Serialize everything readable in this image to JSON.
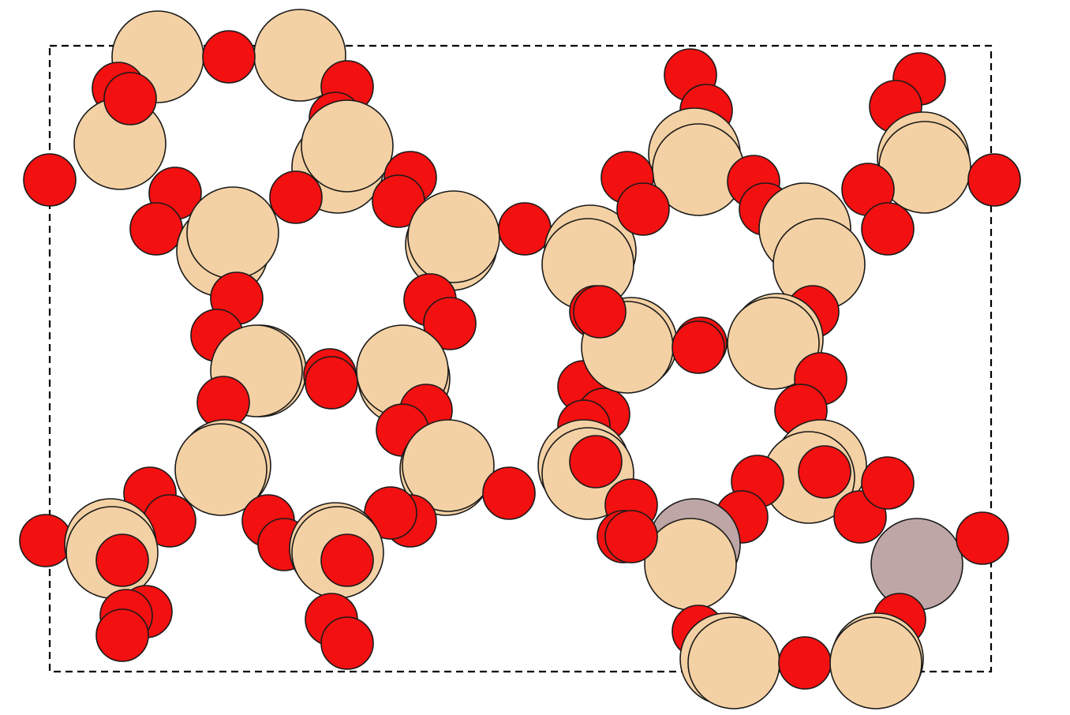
{
  "elements": {
    "Si": {
      "color": "#F4D1A4"
    },
    "O": {
      "color": "#F21010"
    },
    "Al": {
      "color": "#BFA6A6"
    }
  },
  "unit_cell": {
    "style": "dashed"
  }
}
